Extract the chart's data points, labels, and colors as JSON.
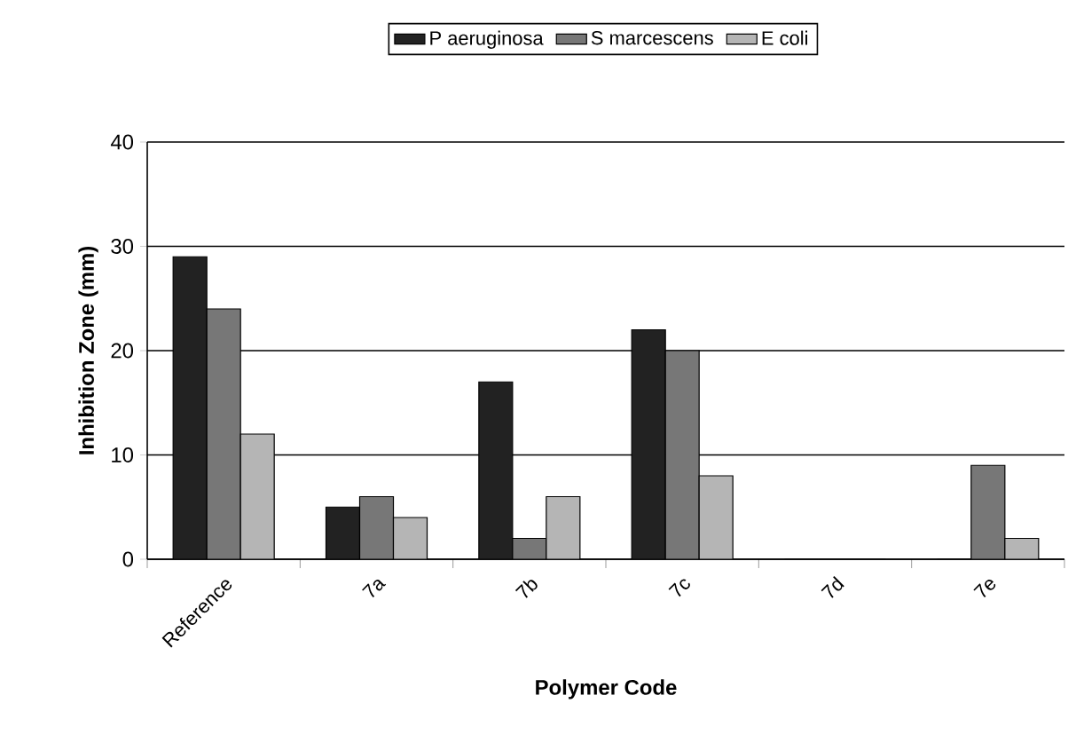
{
  "chart_data": {
    "type": "bar",
    "xlabel": "Polymer Code",
    "ylabel": "Inhibition Zone (mm)",
    "categories": [
      "Reference",
      "7a",
      "7b",
      "7c",
      "7d",
      "7e"
    ],
    "series": [
      {
        "name": "P aeruginosa",
        "color": "#222222",
        "values": [
          29,
          5,
          17,
          22,
          0,
          0
        ]
      },
      {
        "name": "S marcescens",
        "color": "#777777",
        "values": [
          24,
          6,
          2,
          20,
          0,
          9
        ]
      },
      {
        "name": "E coli",
        "color": "#b5b5b5",
        "values": [
          12,
          4,
          6,
          8,
          0,
          2
        ]
      }
    ],
    "ylim": [
      0,
      40
    ],
    "yticks": [
      0,
      10,
      20,
      30,
      40
    ],
    "grid": "y",
    "legend": "top"
  }
}
